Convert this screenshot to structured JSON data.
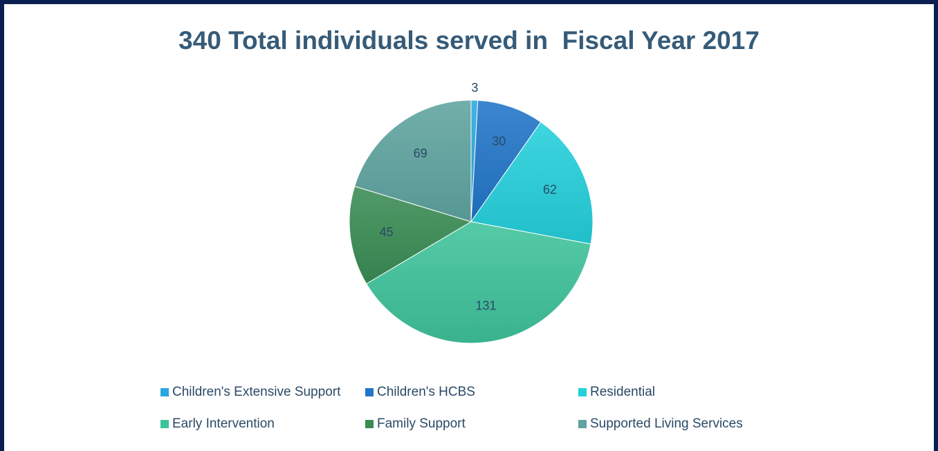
{
  "chart_data": {
    "type": "pie",
    "title": "340 Total individuals served in  Fiscal Year 2017",
    "categories": [
      "Children's Extensive Support",
      "Children's HCBS",
      "Residential",
      "Early Intervention",
      "Family Support",
      "Supported Living Services"
    ],
    "values": [
      3,
      30,
      62,
      131,
      45,
      69
    ],
    "colors": [
      "#2aa7e0",
      "#2175c8",
      "#24d0dc",
      "#3ec39a",
      "#3a8c55",
      "#5fa4a0"
    ],
    "data_labels": [
      "3",
      "30",
      "62",
      "131",
      "45",
      "69"
    ],
    "legend_placement": "bottom",
    "start_angle": "top",
    "direction": "clockwise"
  }
}
